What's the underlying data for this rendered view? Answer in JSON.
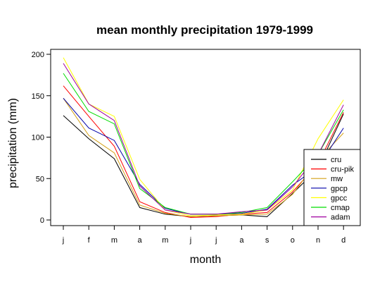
{
  "chart_data": {
    "type": "line",
    "title": "mean monthly precipitation 1979-1999",
    "xlabel": "month",
    "ylabel": "precipitation (mm)",
    "categories": [
      "j",
      "f",
      "m",
      "a",
      "m",
      "j",
      "j",
      "a",
      "s",
      "o",
      "n",
      "d"
    ],
    "ylim": [
      -8,
      205
    ],
    "yticks": [
      0,
      50,
      100,
      150,
      200
    ],
    "grid": false,
    "legend_position": "bottom-right",
    "series": [
      {
        "name": "cru",
        "color": "#000000",
        "values": [
          126,
          98,
          74,
          15,
          7,
          4,
          5,
          6,
          4,
          32,
          62,
          128
        ]
      },
      {
        "name": "cru-pik",
        "color": "#ff0000",
        "values": [
          162,
          125,
          89,
          22,
          9,
          3,
          4,
          7,
          9,
          34,
          68,
          130
        ]
      },
      {
        "name": "mw",
        "color": "#d4a017",
        "values": [
          147,
          102,
          81,
          18,
          8,
          4,
          5,
          6,
          7,
          31,
          72,
          105
        ]
      },
      {
        "name": "gpcp",
        "color": "#0000aa",
        "values": [
          147,
          111,
          96,
          43,
          14,
          7,
          7,
          8,
          13,
          42,
          64,
          111
        ]
      },
      {
        "name": "gpcc",
        "color": "#ffff00",
        "values": [
          196,
          140,
          125,
          49,
          12,
          5,
          6,
          7,
          12,
          36,
          98,
          145
        ]
      },
      {
        "name": "cmap",
        "color": "#00dd00",
        "values": [
          177,
          131,
          116,
          38,
          15,
          7,
          7,
          9,
          15,
          46,
          79,
          133
        ]
      },
      {
        "name": "adam",
        "color": "#a000a0",
        "values": [
          189,
          140,
          120,
          41,
          12,
          7,
          7,
          10,
          12,
          40,
          79,
          139
        ]
      }
    ]
  }
}
